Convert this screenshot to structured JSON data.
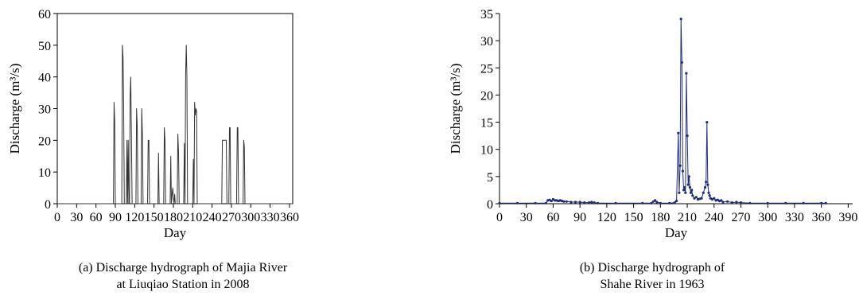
{
  "chart_data": [
    {
      "type": "line",
      "title": "",
      "xlabel": "Day",
      "ylabel": "Discharge (m³/s)",
      "xlim": [
        0,
        365
      ],
      "ylim": [
        0,
        60
      ],
      "xticks": [
        0,
        30,
        60,
        90,
        120,
        150,
        180,
        210,
        240,
        270,
        300,
        330,
        360
      ],
      "yticks": [
        0,
        10,
        20,
        30,
        40,
        50,
        60
      ],
      "grid": false,
      "legend": "none",
      "caption_lines": [
        "(a) Discharge hydrograph of Majia River",
        "at Liuqiao Station in 2008"
      ],
      "color": "#333333",
      "series": [
        {
          "x": [
            0,
            87,
            88,
            89,
            90,
            100,
            101,
            102,
            103,
            104,
            105,
            107,
            108,
            109,
            110,
            111,
            112,
            113,
            114,
            115,
            116,
            117,
            122,
            123,
            124,
            125,
            130,
            131,
            132,
            133,
            140,
            141,
            142,
            143,
            156,
            157,
            158,
            165,
            166,
            167,
            168,
            175,
            176,
            177,
            178,
            179,
            180,
            181,
            182,
            183,
            184,
            186,
            187,
            188,
            189,
            190,
            196,
            197,
            198,
            199,
            200,
            201,
            202,
            203,
            210,
            211,
            212,
            213,
            214,
            215,
            216,
            217,
            218,
            219,
            255,
            256,
            262,
            263,
            266,
            267,
            268,
            269,
            270,
            278,
            279,
            280,
            281,
            288,
            289,
            290,
            291,
            365
          ],
          "y": [
            0,
            0,
            32,
            26,
            0,
            0,
            50,
            46,
            30,
            0,
            0,
            0,
            20,
            0,
            20,
            0,
            0,
            34,
            40,
            20,
            0,
            0,
            0,
            30,
            24,
            0,
            0,
            30,
            22,
            0,
            0,
            20,
            20,
            0,
            0,
            16,
            0,
            0,
            24,
            20,
            0,
            0,
            15,
            0,
            3,
            5,
            2,
            0,
            3,
            0,
            0,
            0,
            22,
            16,
            0,
            0,
            0,
            19,
            0,
            41,
            50,
            40,
            0,
            0,
            0,
            14,
            0,
            32,
            28,
            30,
            29,
            0,
            0,
            0,
            0,
            20,
            20,
            0,
            0,
            24,
            24,
            0,
            0,
            0,
            24,
            24,
            0,
            0,
            20,
            18,
            0,
            0
          ]
        }
      ]
    },
    {
      "type": "line",
      "title": "",
      "xlabel": "Day",
      "ylabel": "Discharge (m³/s)",
      "xlim": [
        0,
        395
      ],
      "ylim": [
        0,
        35
      ],
      "xticks": [
        0,
        30,
        60,
        90,
        120,
        150,
        180,
        210,
        240,
        270,
        300,
        330,
        360,
        390
      ],
      "yticks": [
        0,
        5,
        10,
        15,
        20,
        25,
        30,
        35
      ],
      "grid": false,
      "legend": "none",
      "caption_lines": [
        "(b) Discharge hydrograph of",
        "Shahe River in 1963"
      ],
      "color": "#1f2d7a",
      "series": [
        {
          "x": [
            0,
            20,
            40,
            52,
            54,
            56,
            58,
            60,
            62,
            64,
            66,
            68,
            70,
            72,
            75,
            80,
            85,
            90,
            95,
            100,
            103,
            106,
            110,
            130,
            160,
            170,
            172,
            174,
            176,
            180,
            190,
            196,
            198,
            200,
            201,
            202,
            203,
            204,
            205,
            206,
            207,
            208,
            209,
            210,
            211,
            212,
            213,
            214,
            215,
            216,
            218,
            220,
            222,
            224,
            226,
            228,
            230,
            231,
            232,
            233,
            234,
            235,
            236,
            238,
            240,
            242,
            244,
            246,
            248,
            250,
            255,
            260,
            265,
            270,
            280,
            300,
            320,
            340,
            360,
            365
          ],
          "y": [
            0.1,
            0.1,
            0.1,
            0.1,
            0.6,
            0.7,
            0.5,
            0.8,
            0.6,
            0.6,
            0.5,
            0.6,
            0.5,
            0.4,
            0.4,
            0.3,
            0.3,
            0.3,
            0.2,
            0.2,
            0.3,
            0.2,
            0.1,
            0.1,
            0.1,
            0.1,
            0.4,
            0.6,
            0.3,
            0.1,
            0.1,
            0.2,
            0.5,
            13,
            2,
            7,
            34,
            26,
            6,
            2.5,
            3,
            2,
            24,
            12.5,
            3.5,
            5,
            3,
            2,
            2.5,
            1.5,
            1,
            1.2,
            0.8,
            0.9,
            1,
            2,
            3,
            4,
            15,
            3.5,
            2,
            1.5,
            1,
            0.8,
            1,
            0.6,
            0.7,
            0.5,
            0.6,
            0.3,
            0.4,
            0.2,
            0.3,
            0.2,
            0.1,
            0.1,
            0.1,
            0.1,
            0.1,
            0.1
          ]
        }
      ]
    }
  ]
}
